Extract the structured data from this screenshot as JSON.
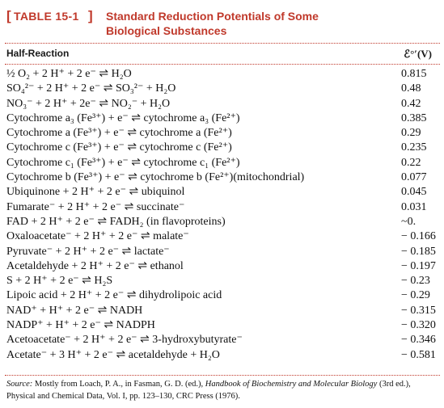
{
  "table": {
    "badge": "TABLE 15-1",
    "title_line1": "Standard Reduction Potentials of Some",
    "title_line2": "Biological Substances"
  },
  "columns": {
    "reaction": "Half-Reaction",
    "potential": "ℰ°′(V)"
  },
  "rows": [
    {
      "reaction": "½ O₂ + 2 H⁺ + 2 e⁻ ⇌ H₂O",
      "e": "0.815"
    },
    {
      "reaction": "SO₄²⁻ + 2 H⁺ + 2 e⁻ ⇌ SO₃²⁻ + H₂O",
      "e": "0.48"
    },
    {
      "reaction": "NO₃⁻ + 2 H⁺ + 2e⁻ ⇌ NO₂⁻ + H₂O",
      "e": "0.42"
    },
    {
      "reaction": "Cytochrome a₃ (Fe³⁺) + e⁻ ⇌ cytochrome a₃ (Fe²⁺)",
      "e": "0.385"
    },
    {
      "reaction": "Cytochrome a (Fe³⁺) + e⁻ ⇌ cytochrome a (Fe²⁺)",
      "e": "0.29"
    },
    {
      "reaction": "Cytochrome c (Fe³⁺) + e⁻ ⇌ cytochrome c (Fe²⁺)",
      "e": "0.235"
    },
    {
      "reaction": "Cytochrome c₁ (Fe³⁺) + e⁻ ⇌ cytochrome c₁ (Fe²⁺)",
      "e": "0.22"
    },
    {
      "reaction": "Cytochrome b (Fe³⁺) + e⁻ ⇌ cytochrome b (Fe²⁺)(mitochondrial)",
      "e": "0.077"
    },
    {
      "reaction": "Ubiquinone + 2 H⁺ + 2 e⁻ ⇌ ubiquinol",
      "e": "0.045"
    },
    {
      "reaction": "Fumarate⁻ + 2 H⁺ + 2 e⁻ ⇌ succinate⁻",
      "e": "0.031"
    },
    {
      "reaction": "FAD + 2 H⁺ + 2 e⁻ ⇌ FADH₂ (in flavoproteins)",
      "e": "~0."
    },
    {
      "reaction": "Oxaloacetate⁻ + 2 H⁺ + 2 e⁻ ⇌ malate⁻",
      "e": "− 0.166"
    },
    {
      "reaction": "Pyruvate⁻ + 2 H⁺ + 2 e⁻ ⇌ lactate⁻",
      "e": "− 0.185"
    },
    {
      "reaction": "Acetaldehyde + 2 H⁺ + 2 e⁻ ⇌ ethanol",
      "e": "− 0.197"
    },
    {
      "reaction": "S + 2 H⁺ + 2 e⁻ ⇌ H₂S",
      "e": "− 0.23"
    },
    {
      "reaction": "Lipoic acid + 2 H⁺ + 2 e⁻ ⇌ dihydrolipoic acid",
      "e": "− 0.29"
    },
    {
      "reaction": "NAD⁺ + H⁺ + 2 e⁻ ⇌ NADH",
      "e": "− 0.315"
    },
    {
      "reaction": "NADP⁺ + H⁺ + 2 e⁻ ⇌ NADPH",
      "e": "− 0.320"
    },
    {
      "reaction": "Acetoacetate⁻ + 2 H⁺ + 2 e⁻ ⇌ 3-hydroxybutyrate⁻",
      "e": "− 0.346"
    },
    {
      "reaction": "Acetate⁻ + 3 H⁺ + 2 e⁻ ⇌ acetaldehyde + H₂O",
      "e": "− 0.581"
    }
  ],
  "source": {
    "label": "Source:",
    "text1": " Mostly from Loach, P. A., in Fasman, G. D. (ed.), ",
    "book": "Handbook of Biochemistry and Molecular Biology",
    "text2": " (3rd ed.),",
    "line2": "Physical and Chemical Data, Vol. I, pp. 123–130, CRC Press (1976)."
  },
  "colors": {
    "accent": "#c0392b",
    "text": "#111111"
  }
}
